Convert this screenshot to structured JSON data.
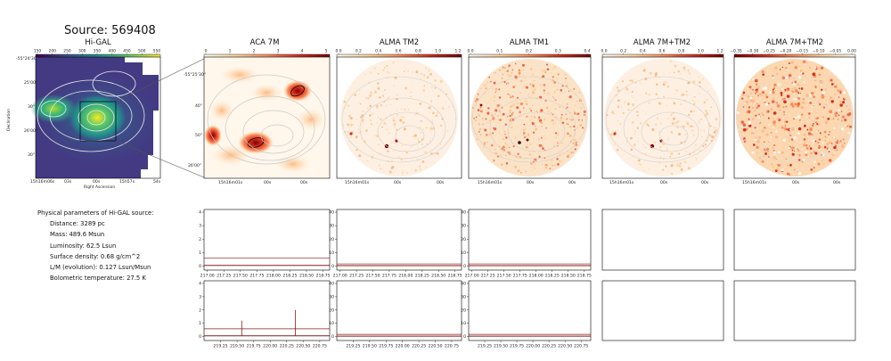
{
  "header": {
    "source_title": "Source: 569408"
  },
  "panels": [
    {
      "title": "Hi-GAL",
      "colorbar": {
        "ticks": [
          "150",
          "200",
          "250",
          "300",
          "350",
          "400",
          "450",
          "500",
          "550"
        ],
        "cmap": "viridis"
      }
    },
    {
      "title": "ACA 7M",
      "colorbar": {
        "ticks": [
          "0",
          "1",
          "2",
          "3",
          "4",
          "5"
        ],
        "cmap": "orrd"
      }
    },
    {
      "title": "ALMA TM2",
      "colorbar": {
        "ticks": [
          "0.0",
          "0.2",
          "0.4",
          "0.6",
          "0.8",
          "1.0",
          "1.2"
        ],
        "cmap": "orrd"
      }
    },
    {
      "title": "ALMA TM1",
      "colorbar": {
        "ticks": [
          "0.0",
          "0.1",
          "0.2",
          "0.3",
          "0.4"
        ],
        "cmap": "orrd"
      }
    },
    {
      "title": "ALMA 7M+TM2",
      "colorbar": {
        "ticks": [
          "0.0",
          "0.2",
          "0.4",
          "0.6",
          "0.8",
          "1.0",
          "1.2"
        ],
        "cmap": "orrd"
      }
    },
    {
      "title": "ALMA 7M+TM2",
      "colorbar": {
        "ticks": [
          "−0.35",
          "−0.30",
          "−0.25",
          "−0.20",
          "−0.15",
          "−0.10",
          "−0.05",
          "0.00"
        ],
        "cmap": "orrd_r"
      }
    }
  ],
  "higal_axes": {
    "dec_ticks": [
      "-55°24'30\"",
      "25'00\"",
      "30\"",
      "26'00\"",
      "30\""
    ],
    "ra_ticks": [
      "15h16m06s",
      "03s",
      "00s",
      "15h57s",
      "54s"
    ],
    "xlabel": "Right Ascension",
    "ylabel": "Declination"
  },
  "aca_axes": {
    "dec_ticks": [
      "-55°25'30\"",
      "40\"",
      "50\"",
      "26'00\""
    ],
    "ra_ticks": [
      "15h16m01s",
      "00s",
      "00s"
    ]
  },
  "alma_ra_ticks": [
    "15h16m01s",
    "00s",
    "00s"
  ],
  "physical": {
    "heading": "Physical parameters of Hi-GAL source:",
    "lines": [
      "Distance: 3289 pc",
      "Mass: 489.6 Msun",
      "Luminosity: 62.5 Lsun",
      "Surface density: 0.68 g/cm^2",
      "L/M (evolution): 0.127 Lsun/Msun",
      "Bolometric temperature: 27.5 K"
    ]
  },
  "chart_data": [
    {
      "type": "line",
      "panel": "spectrum-aca-7m-spw1",
      "x_ticks": [
        "217.00",
        "217.25",
        "217.50",
        "217.75",
        "218.00",
        "218.25",
        "218.50",
        "218.75"
      ],
      "y_ticks": [
        "0",
        "1",
        "2",
        "3",
        "4"
      ],
      "xlim": [
        216.95,
        218.85
      ],
      "ylim": [
        -0.3,
        4.2
      ],
      "series": [
        {
          "values": [
            [
              216.95,
              0.05
            ],
            [
              218.85,
              0.05
            ]
          ]
        },
        {
          "values": [
            [
              216.95,
              0.58
            ],
            [
              218.85,
              0.58
            ]
          ]
        }
      ]
    },
    {
      "type": "line",
      "panel": "spectrum-tm2-spw1",
      "x_ticks": [
        "217.00",
        "217.25",
        "217.50",
        "217.75",
        "218.00",
        "218.25",
        "218.50",
        "218.75"
      ],
      "y_ticks": [
        "0",
        "10",
        "20",
        "30",
        "40"
      ],
      "xlim": [
        216.95,
        218.85
      ],
      "ylim": [
        -3,
        42
      ],
      "series": [
        {
          "values": [
            [
              216.95,
              0.3
            ],
            [
              218.85,
              0.3
            ]
          ]
        },
        {
          "values": [
            [
              216.95,
              1.6
            ],
            [
              218.85,
              1.6
            ]
          ]
        }
      ]
    },
    {
      "type": "line",
      "panel": "spectrum-tm1-spw1",
      "x_ticks": [
        "217.00",
        "217.25",
        "217.50",
        "217.75",
        "218.00",
        "218.25",
        "218.50",
        "218.75"
      ],
      "y_ticks": [
        "0",
        "10",
        "20",
        "30",
        "40"
      ],
      "xlim": [
        216.95,
        218.85
      ],
      "ylim": [
        -3,
        42
      ],
      "series": [
        {
          "values": [
            [
              216.95,
              0.3
            ],
            [
              218.85,
              0.3
            ]
          ]
        },
        {
          "values": [
            [
              216.95,
              1.6
            ],
            [
              218.85,
              1.6
            ]
          ]
        }
      ]
    },
    {
      "type": "line",
      "panel": "spectrum-aca-7m-spw2",
      "x_ticks": [
        "219.25",
        "219.50",
        "219.75",
        "220.00",
        "220.25",
        "220.50",
        "220.75"
      ],
      "y_ticks": [
        "0",
        "1",
        "2",
        "3",
        "4"
      ],
      "xlim": [
        219.0,
        220.9
      ],
      "ylim": [
        -0.3,
        4.2
      ],
      "series": [
        {
          "values": [
            [
              219.0,
              0.05
            ],
            [
              220.9,
              0.05
            ]
          ]
        },
        {
          "values": [
            [
              219.0,
              0.58
            ],
            [
              220.9,
              0.58
            ]
          ]
        }
      ],
      "peaks": [
        [
          219.57,
          1.2
        ],
        [
          220.38,
          2.0
        ]
      ]
    },
    {
      "type": "line",
      "panel": "spectrum-tm2-spw2",
      "x_ticks": [
        "219.25",
        "219.50",
        "219.75",
        "220.00",
        "220.25",
        "220.50",
        "220.75"
      ],
      "y_ticks": [
        "0",
        "10",
        "20",
        "30",
        "40"
      ],
      "xlim": [
        219.0,
        220.9
      ],
      "ylim": [
        -3,
        42
      ],
      "series": [
        {
          "values": [
            [
              219.0,
              0.3
            ],
            [
              220.9,
              0.3
            ]
          ]
        },
        {
          "values": [
            [
              219.0,
              1.6
            ],
            [
              220.9,
              1.6
            ]
          ]
        }
      ]
    },
    {
      "type": "line",
      "panel": "spectrum-tm1-spw2",
      "x_ticks": [
        "219.25",
        "219.50",
        "219.75",
        "220.00",
        "220.25",
        "220.50",
        "220.75"
      ],
      "y_ticks": [
        "0",
        "10",
        "20",
        "30",
        "40"
      ],
      "xlim": [
        219.0,
        220.9
      ],
      "ylim": [
        -3,
        42
      ],
      "series": [
        {
          "values": [
            [
              219.0,
              0.3
            ],
            [
              220.9,
              0.3
            ]
          ]
        },
        {
          "values": [
            [
              219.0,
              1.6
            ],
            [
              220.9,
              1.6
            ]
          ]
        }
      ]
    }
  ],
  "colors": {
    "spectrum_line": "#8b1a1a",
    "contour_light": "#cfcfcf",
    "contour_higal": "#e8e8e8"
  }
}
